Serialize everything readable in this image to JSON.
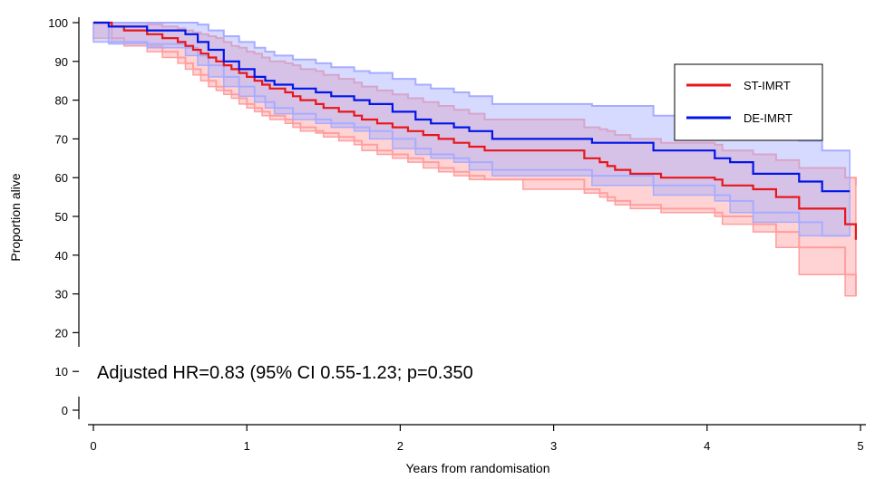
{
  "chart_data": {
    "type": "line",
    "subtype": "kaplan-meier-step",
    "xlabel": "Years from randomisation",
    "ylabel": "Proportion alive",
    "xlim": [
      0,
      5
    ],
    "ylim": [
      0,
      100
    ],
    "x_ticks": [
      "0",
      "1",
      "2",
      "3",
      "4",
      "5"
    ],
    "y_ticks": [
      "0",
      "10",
      "20",
      "30",
      "40",
      "50",
      "60",
      "70",
      "80",
      "90",
      "100"
    ],
    "annotation": "Adjusted HR=0.83 (95% CI 0.55-1.23; p=0.350",
    "legend_position": "top-right",
    "series": [
      {
        "name": "ST-IMRT",
        "color": "#e8161b",
        "band_color": "#ff9e9e",
        "x": [
          0,
          0.12,
          0.2,
          0.35,
          0.45,
          0.55,
          0.6,
          0.65,
          0.7,
          0.75,
          0.8,
          0.85,
          0.9,
          0.95,
          1.0,
          1.05,
          1.1,
          1.15,
          1.25,
          1.3,
          1.35,
          1.45,
          1.5,
          1.6,
          1.7,
          1.75,
          1.85,
          1.95,
          2.05,
          2.15,
          2.25,
          2.35,
          2.45,
          2.55,
          2.8,
          3.2,
          3.3,
          3.35,
          3.4,
          3.5,
          3.7,
          4.05,
          4.1,
          4.3,
          4.45,
          4.6,
          4.9,
          4.97
        ],
        "y": [
          100,
          99,
          98,
          97,
          96,
          95,
          94,
          93,
          92,
          91,
          90,
          89,
          88,
          87,
          86,
          85,
          84,
          83,
          82,
          81,
          80,
          79,
          78,
          77,
          76,
          75,
          74,
          73,
          72,
          71,
          70,
          69,
          68,
          67,
          67,
          65,
          64,
          63,
          62,
          61,
          60,
          59.5,
          58,
          57,
          55,
          52,
          48,
          44
        ],
        "ci_lower": [
          100,
          96,
          95,
          94,
          92.5,
          91,
          89.5,
          88,
          86.5,
          85,
          83.5,
          82.5,
          81.5,
          80.5,
          79,
          78,
          77,
          76,
          75,
          74,
          73,
          72,
          71.5,
          70.5,
          69.5,
          68.5,
          67,
          66,
          65,
          64,
          62.5,
          61.5,
          60.5,
          59.5,
          59.5,
          57,
          56,
          55,
          54,
          53,
          52,
          51,
          50,
          48,
          46,
          42,
          35,
          29.5
        ],
        "ci_upper": [
          100,
          100,
          100,
          99.5,
          99,
          98.5,
          98,
          97.5,
          97,
          96.5,
          96,
          95,
          94,
          93.5,
          92.5,
          92,
          91,
          90,
          89.5,
          89,
          88,
          87.5,
          86.5,
          85.5,
          84.5,
          83.5,
          82.5,
          81.5,
          80.5,
          79.5,
          78.5,
          77.5,
          76.5,
          75,
          75,
          73,
          72.5,
          72,
          71,
          70,
          69,
          68.5,
          67,
          66,
          64.5,
          62.5,
          60,
          58
        ]
      },
      {
        "name": "DE-IMRT",
        "color": "#0015e8",
        "band_color": "#a7acff",
        "x": [
          0,
          0.1,
          0.35,
          0.6,
          0.68,
          0.75,
          0.85,
          0.95,
          1.05,
          1.12,
          1.18,
          1.3,
          1.45,
          1.55,
          1.7,
          1.8,
          1.95,
          2.1,
          2.2,
          2.35,
          2.45,
          2.6,
          3.25,
          3.65,
          4.05,
          4.15,
          4.3,
          4.6,
          4.75,
          4.93
        ],
        "y": [
          100,
          99,
          98,
          97,
          95,
          93,
          90,
          88,
          86,
          85,
          84,
          83,
          82,
          81,
          80,
          79,
          77,
          75,
          74,
          73,
          72,
          70,
          69,
          67,
          65,
          64,
          61,
          59,
          56.5,
          56.5
        ],
        "ci_lower": [
          100,
          95,
          94.5,
          93.5,
          91.5,
          89,
          86,
          83.5,
          81,
          79.5,
          78,
          76.5,
          75,
          74,
          73,
          72,
          70,
          67.5,
          66,
          65,
          64,
          62,
          60.5,
          58,
          55.5,
          54,
          51,
          48.5,
          45,
          45
        ],
        "ci_upper": [
          100,
          100,
          100,
          100,
          99.5,
          98,
          96.5,
          95,
          93.5,
          92.5,
          91.5,
          90.5,
          89.5,
          88.5,
          87.5,
          87,
          85.5,
          84,
          83,
          82,
          81,
          79,
          78.5,
          76,
          74,
          73.5,
          71,
          69.5,
          67,
          67
        ]
      }
    ]
  }
}
